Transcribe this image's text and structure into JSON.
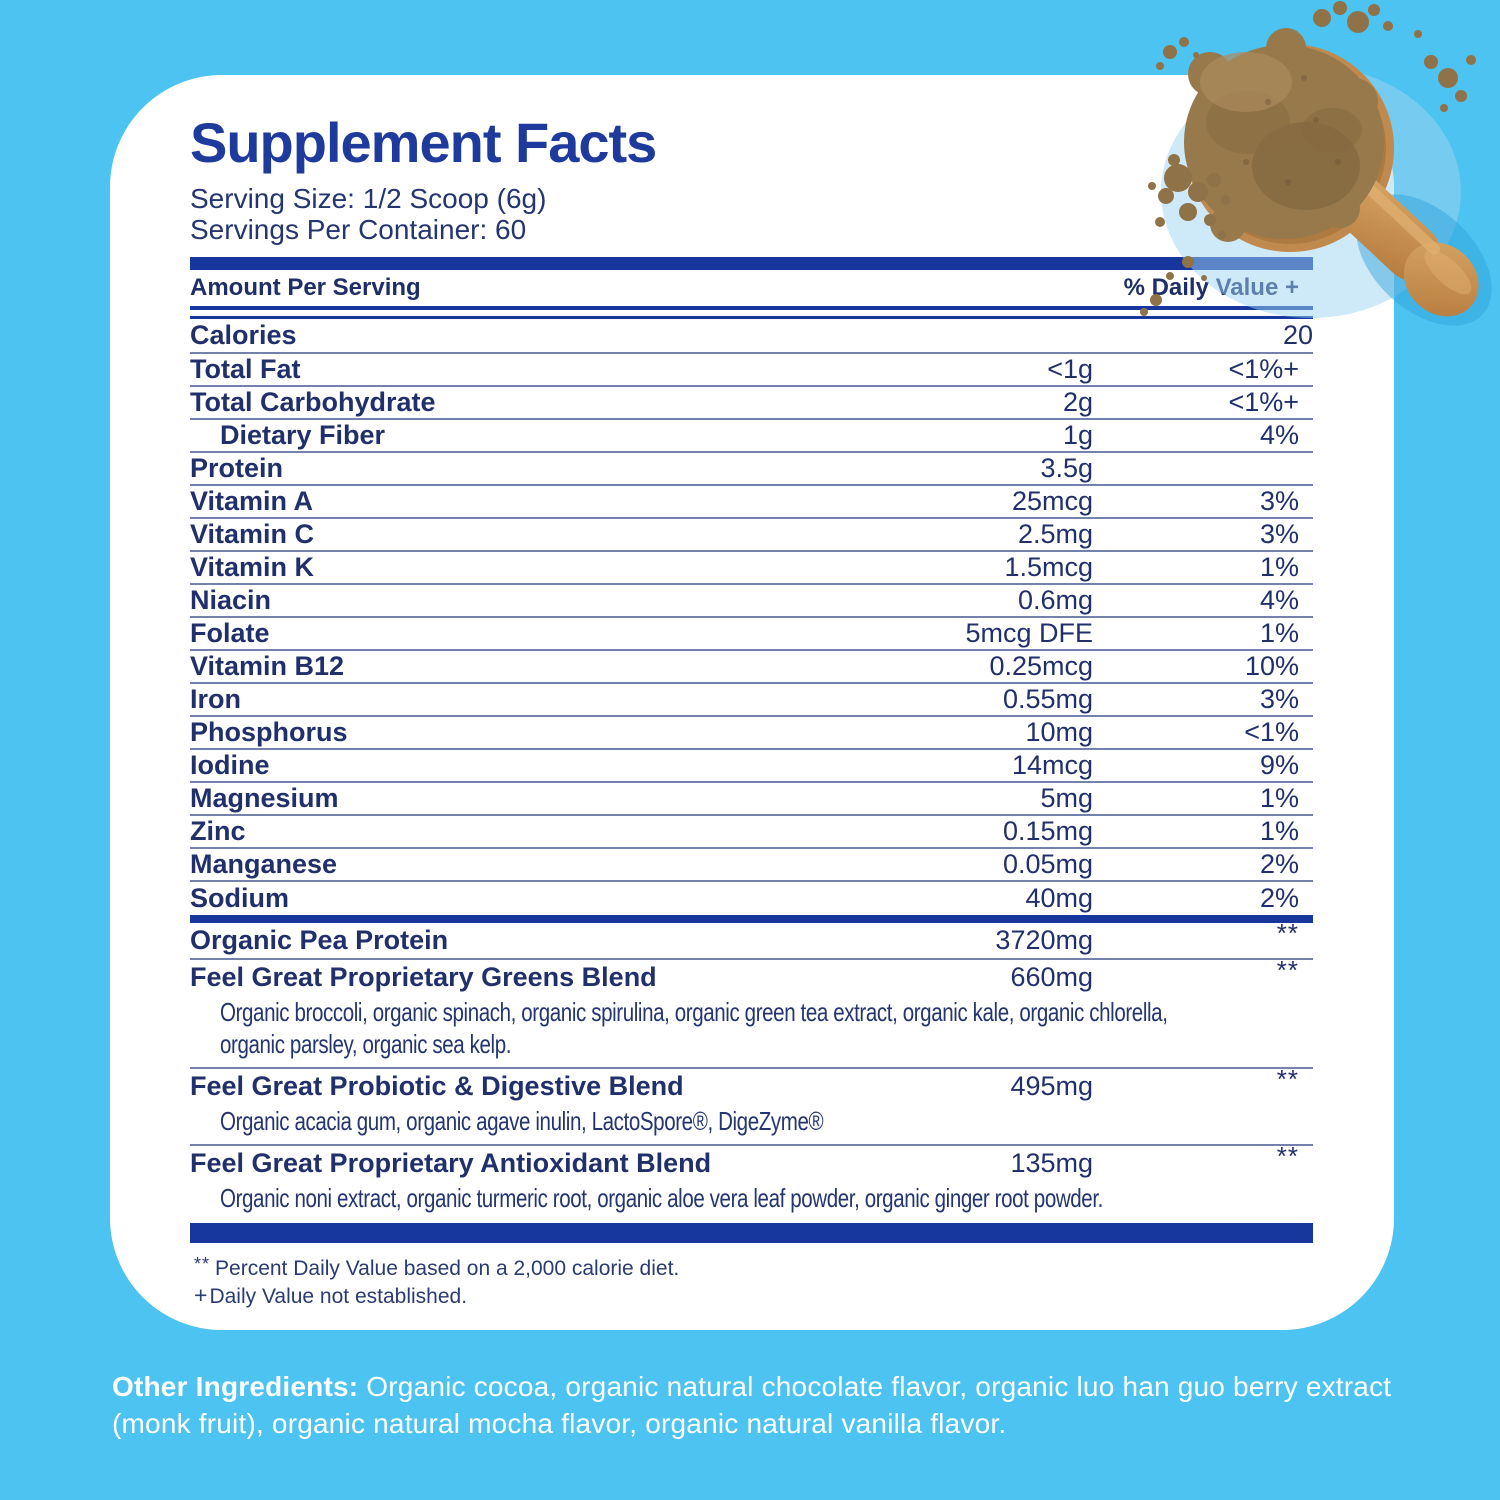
{
  "page": {
    "background_color": "#4CC3F0",
    "card_color": "#FFFFFF"
  },
  "colors": {
    "bar_blue": "#17379E",
    "heading_blue": "#1E3A9C",
    "text_navy": "#21306B",
    "rule_blue": "#7581AD"
  },
  "supplement_facts": {
    "title": "Supplement Facts",
    "serving_size": "Serving Size: 1/2 Scoop (6g)",
    "servings_per_container": "Servings Per Container: 60",
    "header": {
      "amount": "Amount Per Serving",
      "daily_value": "% Daily Value +"
    },
    "calories": {
      "label": "Calories",
      "value": "20"
    },
    "nutrients": [
      {
        "label": "Total Fat",
        "amount": "<1g",
        "dv": "<1%+"
      },
      {
        "label": "Total Carbohydrate",
        "amount": "2g",
        "dv": "<1%+"
      },
      {
        "label": "Dietary Fiber",
        "amount": "1g",
        "dv": "4%",
        "indent": true
      },
      {
        "label": "Protein",
        "amount": "3.5g",
        "dv": ""
      },
      {
        "label": "Vitamin A",
        "amount": "25mcg",
        "dv": "3%"
      },
      {
        "label": "Vitamin C",
        "amount": "2.5mg",
        "dv": "3%"
      },
      {
        "label": "Vitamin K",
        "amount": "1.5mcg",
        "dv": "1%"
      },
      {
        "label": "Niacin",
        "amount": "0.6mg",
        "dv": "4%"
      },
      {
        "label": "Folate",
        "amount": "5mcg DFE",
        "dv": "1%"
      },
      {
        "label": "Vitamin B12",
        "amount": "0.25mcg",
        "dv": "10%"
      },
      {
        "label": "Iron",
        "amount": "0.55mg",
        "dv": "3%"
      },
      {
        "label": "Phosphorus",
        "amount": "10mg",
        "dv": "<1%"
      },
      {
        "label": "Iodine",
        "amount": "14mcg",
        "dv": "9%"
      },
      {
        "label": "Magnesium",
        "amount": "5mg",
        "dv": "1%"
      },
      {
        "label": "Zinc",
        "amount": "0.15mg",
        "dv": "1%"
      },
      {
        "label": "Manganese",
        "amount": "0.05mg",
        "dv": "2%"
      },
      {
        "label": "Sodium",
        "amount": "40mg",
        "dv": "2%"
      }
    ],
    "blends": [
      {
        "label": "Organic Pea Protein",
        "amount": "3720mg",
        "dv": "**",
        "desc_lines": []
      },
      {
        "label": "Feel Great Proprietary Greens Blend",
        "amount": "660mg",
        "dv": "**",
        "desc_lines": [
          "Organic broccoli, organic spinach, organic spirulina, organic green tea extract, organic kale, organic chlorella,",
          "organic parsley, organic sea kelp."
        ]
      },
      {
        "label": "Feel Great Probiotic & Digestive Blend",
        "amount": "495mg",
        "dv": "**",
        "desc_lines": [
          "Organic acacia gum, organic agave inulin, LactoSpore®, DigeZyme®"
        ]
      },
      {
        "label": "Feel Great Proprietary Antioxidant Blend",
        "amount": "135mg",
        "dv": "**",
        "desc_lines": [
          "Organic noni extract, organic turmeric root, organic aloe vera leaf powder, organic ginger root powder."
        ]
      }
    ],
    "footnotes": [
      {
        "marker": "**",
        "text": "Percent Daily Value based on a 2,000 calorie diet."
      },
      {
        "marker": "+",
        "text": "Daily Value not established."
      }
    ]
  },
  "other_ingredients": {
    "label": "Other Ingredients:",
    "text": " Organic cocoa, organic natural chocolate flavor, organic luo han guo berry extract (monk fruit), organic natural mocha flavor, organic natural vanilla flavor."
  },
  "scoop": {
    "name": "wooden-scoop-with-protein-powder",
    "powder_color": "#97794C",
    "powder_dark": "#7A6038",
    "powder_light": "#AB8C5C",
    "crumb_color": "#8F7248",
    "wood_light": "#D8A765",
    "wood_dark": "#B5793C",
    "shadow_color": "#9ED4F0"
  }
}
